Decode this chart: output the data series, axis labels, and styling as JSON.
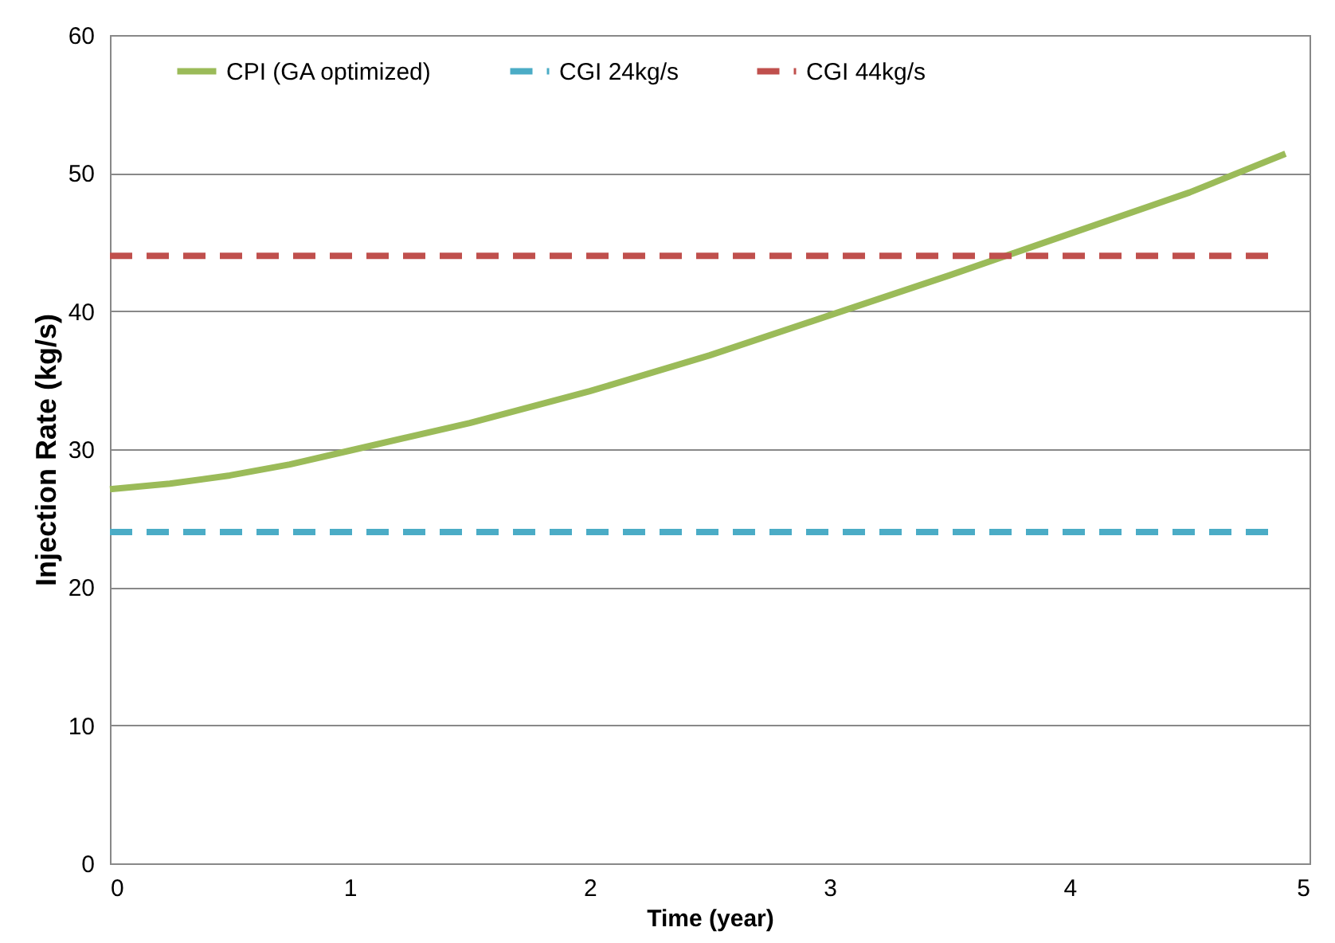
{
  "chart_data": {
    "type": "line",
    "xlabel": "Time (year)",
    "ylabel": "Injection Rate (kg/s)",
    "xlim": [
      0,
      5
    ],
    "xticks": [
      0,
      1,
      2,
      3,
      4,
      5
    ],
    "ylim": [
      0,
      60
    ],
    "yticks": [
      0,
      10,
      20,
      30,
      40,
      50,
      60
    ],
    "grid": "y",
    "legend": "top",
    "series": [
      {
        "name": "CPI (GA optimized)",
        "color": "#9bbb59",
        "line_style": "solid",
        "x": [
          0,
          0.25,
          0.5,
          0.75,
          1,
          1.5,
          2,
          2.5,
          3,
          3.5,
          4,
          4.5,
          4.9
        ],
        "values": [
          27.1,
          27.5,
          28.1,
          28.9,
          29.9,
          31.9,
          34.2,
          36.8,
          39.7,
          42.6,
          45.6,
          48.6,
          51.4
        ]
      },
      {
        "name": "CGI 24kg/s",
        "color": "#4bacc6",
        "line_style": "dashed",
        "x": [
          0,
          4.85
        ],
        "values": [
          24,
          24
        ]
      },
      {
        "name": "CGI 44kg/s",
        "color": "#c0504d",
        "line_style": "dashed",
        "x": [
          0,
          4.85
        ],
        "values": [
          44,
          44
        ]
      }
    ]
  }
}
